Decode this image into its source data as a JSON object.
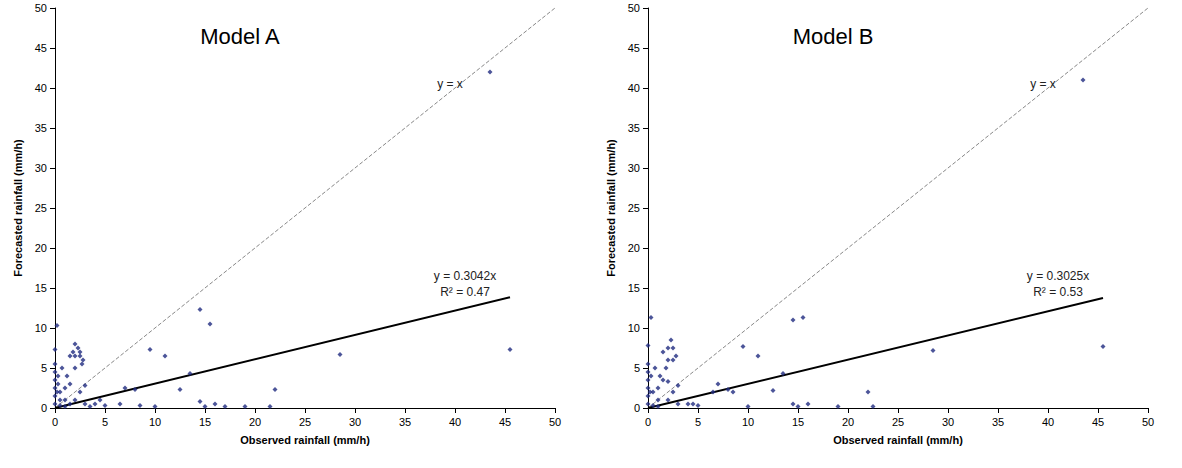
{
  "chart_data": [
    {
      "type": "scatter",
      "title": "Model A",
      "x_label": "Observed rainfall (mm/h)",
      "y_label": "Forecasted rainfall (mm/h)",
      "xlim": [
        0,
        50
      ],
      "ylim": [
        0,
        50
      ],
      "xticks": [
        0,
        5,
        10,
        15,
        20,
        25,
        30,
        35,
        40,
        45,
        50
      ],
      "yticks": [
        0,
        5,
        10,
        15,
        20,
        25,
        30,
        35,
        40,
        45,
        50
      ],
      "grid": false,
      "annotations": [
        "y = x",
        "y = 0.3042x",
        "R² = 0.47"
      ],
      "series": [
        {
          "type": "scatter",
          "color": "#1f2a80",
          "marker": "diamond",
          "x": [
            43.5,
            45.5,
            28.5,
            22,
            21.5,
            19,
            17,
            16,
            15.5,
            14.5,
            14.5,
            15,
            13.5,
            12.5,
            11,
            9.5,
            10,
            8.5,
            8,
            7,
            6.5,
            5,
            4.5,
            4,
            3.5,
            3,
            2.8,
            2.7,
            2.5,
            2.5,
            2.3,
            2,
            2,
            2,
            1.8,
            1.5,
            1.5,
            1,
            1,
            0.5,
            0.5,
            0.2,
            0,
            0,
            0,
            0,
            0,
            0,
            0,
            0.3,
            0.3,
            0.2,
            0.5,
            1,
            1.5,
            2,
            2.5,
            3,
            0.7,
            1.2
          ],
          "values": [
            42,
            7.3,
            6.7,
            2.3,
            0.2,
            0.2,
            0.2,
            0.5,
            10.5,
            12.3,
            0.8,
            0.2,
            4.3,
            2.3,
            6.5,
            7.3,
            0.2,
            0.3,
            2.3,
            2.5,
            0.5,
            0.3,
            1,
            0.5,
            0.2,
            2.8,
            6,
            5.5,
            7,
            6.5,
            7.5,
            8,
            6.5,
            5,
            7,
            6.5,
            3,
            2.5,
            1,
            2,
            1,
            10.3,
            7.3,
            5.5,
            4.5,
            3.5,
            2.5,
            1.5,
            0.5,
            4,
            3,
            2,
            0.3,
            0.2,
            0.5,
            1,
            2,
            0.5,
            5,
            4
          ]
        },
        {
          "type": "line",
          "color": "#888888",
          "line_style": "dashed",
          "x": [
            0,
            50
          ],
          "values": [
            0,
            50
          ]
        },
        {
          "type": "line",
          "color": "#000000",
          "line_style": "solid",
          "x": [
            0,
            45.5
          ],
          "values": [
            0,
            13.84
          ]
        }
      ]
    },
    {
      "type": "scatter",
      "title": "Model B",
      "x_label": "Observed rainfall (mm/h)",
      "y_label": "Forecasted rainfall (mm/h)",
      "xlim": [
        0,
        50
      ],
      "ylim": [
        0,
        50
      ],
      "xticks": [
        0,
        5,
        10,
        15,
        20,
        25,
        30,
        35,
        40,
        45,
        50
      ],
      "yticks": [
        0,
        5,
        10,
        15,
        20,
        25,
        30,
        35,
        40,
        45,
        50
      ],
      "grid": false,
      "annotations": [
        "y = x",
        "y = 0.3025x",
        "R² = 0.53"
      ],
      "series": [
        {
          "type": "scatter",
          "color": "#1f2a80",
          "marker": "diamond",
          "x": [
            43.5,
            45.5,
            28.5,
            22,
            22.5,
            19,
            16,
            15.5,
            14.5,
            14.5,
            15,
            13.5,
            12.5,
            11,
            9.5,
            10,
            8.5,
            8,
            7,
            6.5,
            5,
            4.5,
            4,
            3,
            2.8,
            2.5,
            2.5,
            2.3,
            2,
            2,
            1.8,
            1.5,
            1.5,
            1,
            1,
            0.5,
            0.3,
            0,
            0,
            0,
            0,
            0,
            0,
            0,
            0.3,
            0.2,
            0.5,
            1,
            2,
            2.5,
            3,
            0.7,
            1.2,
            2
          ],
          "values": [
            41,
            7.7,
            7.2,
            2,
            0.2,
            0.2,
            0.5,
            11.3,
            11,
            0.5,
            0.2,
            4.3,
            2.2,
            6.5,
            7.7,
            0.2,
            2,
            2.3,
            3,
            2,
            0.3,
            0.5,
            0.5,
            2.8,
            6.5,
            7.5,
            6,
            8.5,
            7.5,
            6,
            5,
            7,
            3.5,
            2.5,
            1,
            2,
            11.3,
            7.8,
            5.5,
            4.5,
            3.5,
            2.5,
            1.5,
            0.5,
            4,
            2,
            0.3,
            0.2,
            1,
            2,
            0.5,
            5,
            4,
            3.3
          ]
        },
        {
          "type": "line",
          "color": "#888888",
          "line_style": "dashed",
          "x": [
            0,
            50
          ],
          "values": [
            0,
            50
          ]
        },
        {
          "type": "line",
          "color": "#000000",
          "line_style": "solid",
          "x": [
            0,
            45.5
          ],
          "values": [
            0,
            13.76
          ]
        }
      ]
    }
  ]
}
